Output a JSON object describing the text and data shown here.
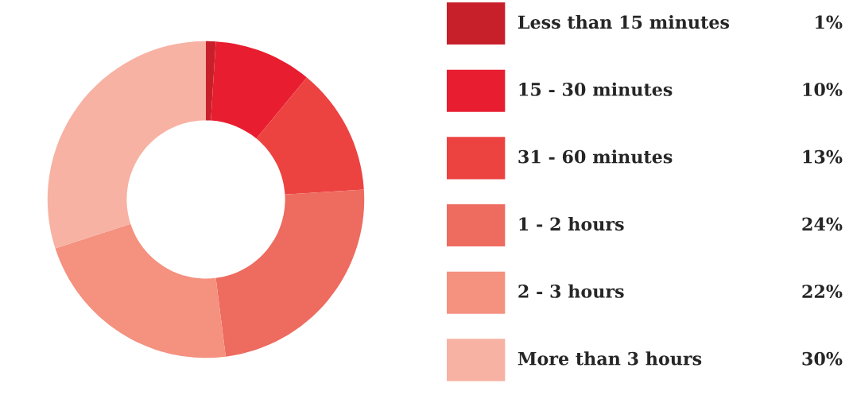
{
  "chart_data": {
    "type": "donut",
    "categories": [
      "Less than 15 minutes",
      "15 - 30 minutes",
      "31 - 60 minutes",
      "1 - 2 hours",
      "2 - 3 hours",
      "More than 3 hours"
    ],
    "values": [
      1,
      10,
      13,
      24,
      22,
      30
    ],
    "value_labels": [
      "1%",
      "10%",
      "13%",
      "24%",
      "22%",
      "30%"
    ],
    "colors": [
      "#c8202a",
      "#e81e30",
      "#ec4341",
      "#ee6b5f",
      "#f4917f",
      "#f7b2a3"
    ],
    "legend": "right"
  }
}
